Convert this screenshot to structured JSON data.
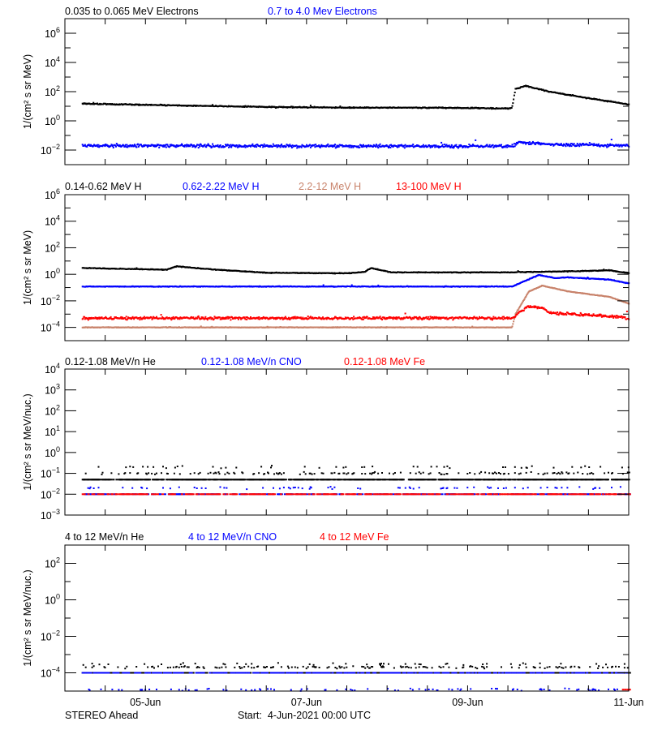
{
  "footer": {
    "spacecraft": "STEREO Ahead",
    "start": "Start:  4-Jun-2021 00:00 UTC"
  },
  "x_axis": {
    "start": "2021-06-04T00:00",
    "end": "2021-06-11T00:00",
    "tick_labels": [
      {
        "t": "2021-06-05T00:00",
        "label": "05-Jun"
      },
      {
        "t": "2021-06-07T00:00",
        "label": "07-Jun"
      },
      {
        "t": "2021-06-09T00:00",
        "label": "09-Jun"
      },
      {
        "t": "2021-06-11T00:00",
        "label": "11-Jun"
      }
    ],
    "minor_tick_interval_hours": 12
  },
  "chart_data": [
    {
      "type": "scatter",
      "yscale": "log",
      "ylim": [
        0.001,
        10000000.0
      ],
      "ylabel": "1/(cm² s sr MeV)",
      "yticks": [
        1000000.0,
        10000.0,
        100.0,
        1.0,
        0.01
      ],
      "series": [
        {
          "name": "0.035 to 0.065 MeV Electrons",
          "color": "#000000",
          "points": [
            [
              "2021-06-04T05:00",
              15
            ],
            [
              "2021-06-05T12:00",
              11
            ],
            [
              "2021-06-06T12:00",
              9
            ],
            [
              "2021-06-07T12:00",
              8
            ],
            [
              "2021-06-08T12:00",
              8
            ],
            [
              "2021-06-09T12:00",
              7
            ],
            [
              "2021-06-09T13:00",
              8
            ],
            [
              "2021-06-09T14:00",
              150
            ],
            [
              "2021-06-09T17:00",
              250
            ],
            [
              "2021-06-10T00:00",
              100
            ],
            [
              "2021-06-10T12:00",
              35
            ],
            [
              "2021-06-10T23:59",
              13
            ]
          ]
        },
        {
          "name": "0.7 to 4.0 Mev Electrons",
          "color": "#0000ff",
          "points": [
            [
              "2021-06-04T05:00",
              0.02
            ],
            [
              "2021-06-09T13:00",
              0.018
            ],
            [
              "2021-06-09T15:00",
              0.035
            ],
            [
              "2021-06-10T00:00",
              0.025
            ],
            [
              "2021-06-10T23:59",
              0.02
            ]
          ]
        }
      ]
    },
    {
      "type": "scatter",
      "yscale": "log",
      "ylim": [
        1e-05,
        1000000.0
      ],
      "ylabel": "1/(cm² s sr MeV)",
      "yticks": [
        1000000.0,
        10000.0,
        100.0,
        1.0,
        0.01,
        0.0001
      ],
      "series": [
        {
          "name": "0.14-0.62 MeV H",
          "color": "#000000",
          "points": [
            [
              "2021-06-04T05:00",
              3
            ],
            [
              "2021-06-05T06:00",
              2.2
            ],
            [
              "2021-06-05T09:00",
              4
            ],
            [
              "2021-06-05T18:00",
              2.5
            ],
            [
              "2021-06-06T00:00",
              2
            ],
            [
              "2021-06-06T12:00",
              1.3
            ],
            [
              "2021-06-07T12:00",
              1.2
            ],
            [
              "2021-06-07T17:00",
              1.5
            ],
            [
              "2021-06-07T19:00",
              3
            ],
            [
              "2021-06-08T01:00",
              1.4
            ],
            [
              "2021-06-09T12:00",
              1.4
            ],
            [
              "2021-06-10T12:00",
              1.8
            ],
            [
              "2021-06-10T18:00",
              2
            ],
            [
              "2021-06-10T23:59",
              1.2
            ]
          ]
        },
        {
          "name": "0.62-2.22 MeV H",
          "color": "#0000ff",
          "points": [
            [
              "2021-06-04T05:00",
              0.12
            ],
            [
              "2021-06-09T13:00",
              0.12
            ],
            [
              "2021-06-09T21:00",
              0.9
            ],
            [
              "2021-06-10T02:00",
              0.5
            ],
            [
              "2021-06-10T05:00",
              0.6
            ],
            [
              "2021-06-10T18:00",
              0.4
            ],
            [
              "2021-06-10T23:59",
              0.2
            ]
          ]
        },
        {
          "name": "2.2-12 MeV H",
          "color": "#c8826a",
          "points": [
            [
              "2021-06-04T05:00",
              0.0001
            ],
            [
              "2021-06-09T13:00",
              0.0001
            ],
            [
              "2021-06-09T14:00",
              0.001
            ],
            [
              "2021-06-09T18:00",
              0.05
            ],
            [
              "2021-06-09T22:00",
              0.14
            ],
            [
              "2021-06-10T06:00",
              0.05
            ],
            [
              "2021-06-10T18:00",
              0.02
            ],
            [
              "2021-06-10T23:59",
              0.006
            ]
          ]
        },
        {
          "name": "13-100 MeV H",
          "color": "#ff0000",
          "points": [
            [
              "2021-06-04T05:00",
              0.0005
            ],
            [
              "2021-06-09T13:00",
              0.0005
            ],
            [
              "2021-06-09T18:00",
              0.004
            ],
            [
              "2021-06-09T22:00",
              0.003
            ],
            [
              "2021-06-10T00:00",
              0.0012
            ],
            [
              "2021-06-10T12:00",
              0.0009
            ],
            [
              "2021-06-10T23:59",
              0.0005
            ]
          ]
        }
      ]
    },
    {
      "type": "scatter",
      "yscale": "log",
      "ylim": [
        0.001,
        10000.0
      ],
      "ylabel": "1/(cm² s sr MeV/nuc.)",
      "yticks": [
        10000.0,
        1000.0,
        100.0,
        10.0,
        1.0,
        0.1,
        0.01,
        0.001
      ],
      "series": [
        {
          "name": "0.12-1.08 MeV/n He",
          "color": "#000000",
          "levels": [
            0.05,
            0.1,
            0.2
          ],
          "range": [
            "2021-06-04T05:00",
            "2021-06-10T23:59"
          ]
        },
        {
          "name": "0.12-1.08 MeV/n CNO",
          "color": "#0000ff",
          "levels": [
            0.01,
            0.02
          ],
          "range": [
            "2021-06-04T05:00",
            "2021-06-10T23:59"
          ]
        },
        {
          "name": "0.12-1.08 MeV Fe",
          "color": "#ff0000",
          "levels": [
            0.01
          ],
          "range": [
            "2021-06-04T05:00",
            "2021-06-10T23:59"
          ]
        }
      ]
    },
    {
      "type": "scatter",
      "yscale": "log",
      "ylim": [
        1e-05,
        1000.0
      ],
      "ylabel": "1/(cm² s sr MeV/nuc.)",
      "yticks": [
        100.0,
        1.0,
        0.01,
        0.0001
      ],
      "series": [
        {
          "name": "4 to 12 MeV/n He",
          "color": "#000000",
          "levels": [
            0.0001,
            0.0002,
            0.0003
          ],
          "range": [
            "2021-06-04T05:00",
            "2021-06-10T23:59"
          ]
        },
        {
          "name": "4 to 12 MeV/n CNO",
          "color": "#0000ff",
          "levels": [
            0.0001,
            1.2e-05
          ],
          "range": [
            "2021-06-04T05:00",
            "2021-06-10T23:59"
          ]
        },
        {
          "name": "4 to 12 MeV Fe",
          "color": "#ff0000",
          "levels": [
            1.2e-05
          ],
          "range": [
            "2021-06-10T22:00",
            "2021-06-10T23:59"
          ]
        }
      ]
    }
  ]
}
